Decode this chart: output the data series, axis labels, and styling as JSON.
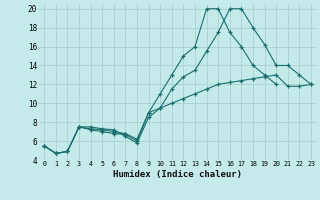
{
  "xlabel": "Humidex (Indice chaleur)",
  "bg_color": "#c5eaea",
  "grid_color": "#aad0d0",
  "line_color": "#1a6e6e",
  "xlim": [
    -0.5,
    23.5
  ],
  "ylim": [
    4,
    20.5
  ],
  "xticks": [
    0,
    1,
    2,
    3,
    4,
    5,
    6,
    7,
    8,
    9,
    10,
    11,
    12,
    13,
    14,
    15,
    16,
    17,
    18,
    19,
    20,
    21,
    22,
    23
  ],
  "yticks": [
    4,
    6,
    8,
    10,
    12,
    14,
    16,
    18,
    20
  ],
  "line1_x": [
    0,
    1,
    2,
    3,
    4,
    5,
    6,
    7,
    8,
    9,
    10,
    11,
    12,
    13,
    14,
    15,
    16,
    17,
    18,
    19,
    20
  ],
  "line1_y": [
    5.5,
    4.7,
    4.9,
    7.5,
    7.2,
    7.0,
    6.8,
    6.7,
    6.0,
    9.0,
    11.0,
    13.0,
    15.0,
    16.0,
    20.0,
    20.0,
    17.5,
    16.0,
    14.0,
    13.0,
    12.0
  ],
  "line2_x": [
    0,
    1,
    2,
    3,
    4,
    5,
    6,
    7,
    8,
    9,
    10,
    11,
    12,
    13,
    14,
    15,
    16,
    17,
    18,
    19,
    20,
    21,
    22,
    23
  ],
  "line2_y": [
    5.5,
    4.7,
    4.9,
    7.5,
    7.5,
    7.3,
    7.2,
    6.5,
    5.8,
    8.5,
    9.5,
    11.5,
    12.8,
    13.5,
    15.5,
    17.5,
    20.0,
    20.0,
    18.0,
    16.2,
    14.0,
    14.0,
    13.0,
    12.0
  ],
  "line3_x": [
    0,
    1,
    2,
    3,
    4,
    5,
    6,
    7,
    8,
    9,
    10,
    11,
    12,
    13,
    14,
    15,
    16,
    17,
    18,
    19,
    20,
    21,
    22,
    23
  ],
  "line3_y": [
    5.5,
    4.7,
    4.9,
    7.5,
    7.3,
    7.2,
    7.0,
    6.8,
    6.2,
    9.0,
    9.5,
    10.0,
    10.5,
    11.0,
    11.5,
    12.0,
    12.2,
    12.4,
    12.6,
    12.8,
    13.0,
    11.8,
    11.8,
    12.0
  ]
}
